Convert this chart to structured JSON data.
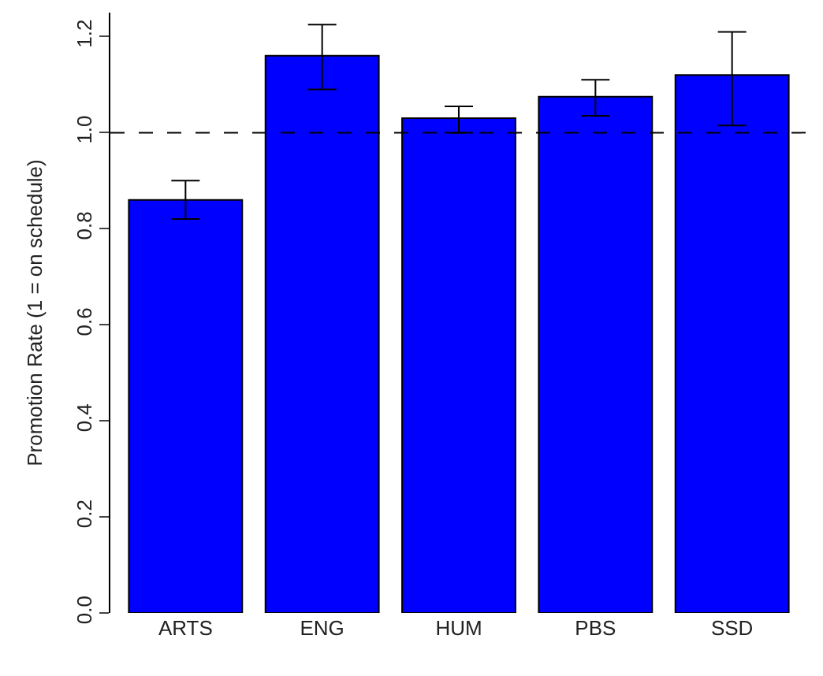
{
  "chart_data": {
    "type": "bar",
    "ylabel": "Promotion Rate (1 = on schedule)",
    "categories": [
      "ARTS",
      "ENG",
      "HUM",
      "PBS",
      "SSD"
    ],
    "values": [
      0.86,
      1.16,
      1.03,
      1.075,
      1.12
    ],
    "errors": [
      [
        0.82,
        0.9
      ],
      [
        1.09,
        1.225
      ],
      [
        1.0,
        1.055
      ],
      [
        1.035,
        1.11
      ],
      [
        1.015,
        1.21
      ]
    ],
    "color": "#0000ff",
    "ylim": [
      0,
      1.25
    ],
    "yticks": [
      {
        "value": 0,
        "label": "0.0"
      },
      {
        "value": 0.2,
        "label": "0.2"
      },
      {
        "value": 0.4,
        "label": "0.4"
      },
      {
        "value": 0.6,
        "label": "0.6"
      },
      {
        "value": 0.8,
        "label": "0.8"
      },
      {
        "value": 1,
        "label": "1.0"
      },
      {
        "value": 1.2,
        "label": "1.2"
      }
    ],
    "ref_lines": [
      {
        "axis": "y",
        "value": 1,
        "color": "#000000",
        "line_style": "dashed"
      }
    ]
  }
}
